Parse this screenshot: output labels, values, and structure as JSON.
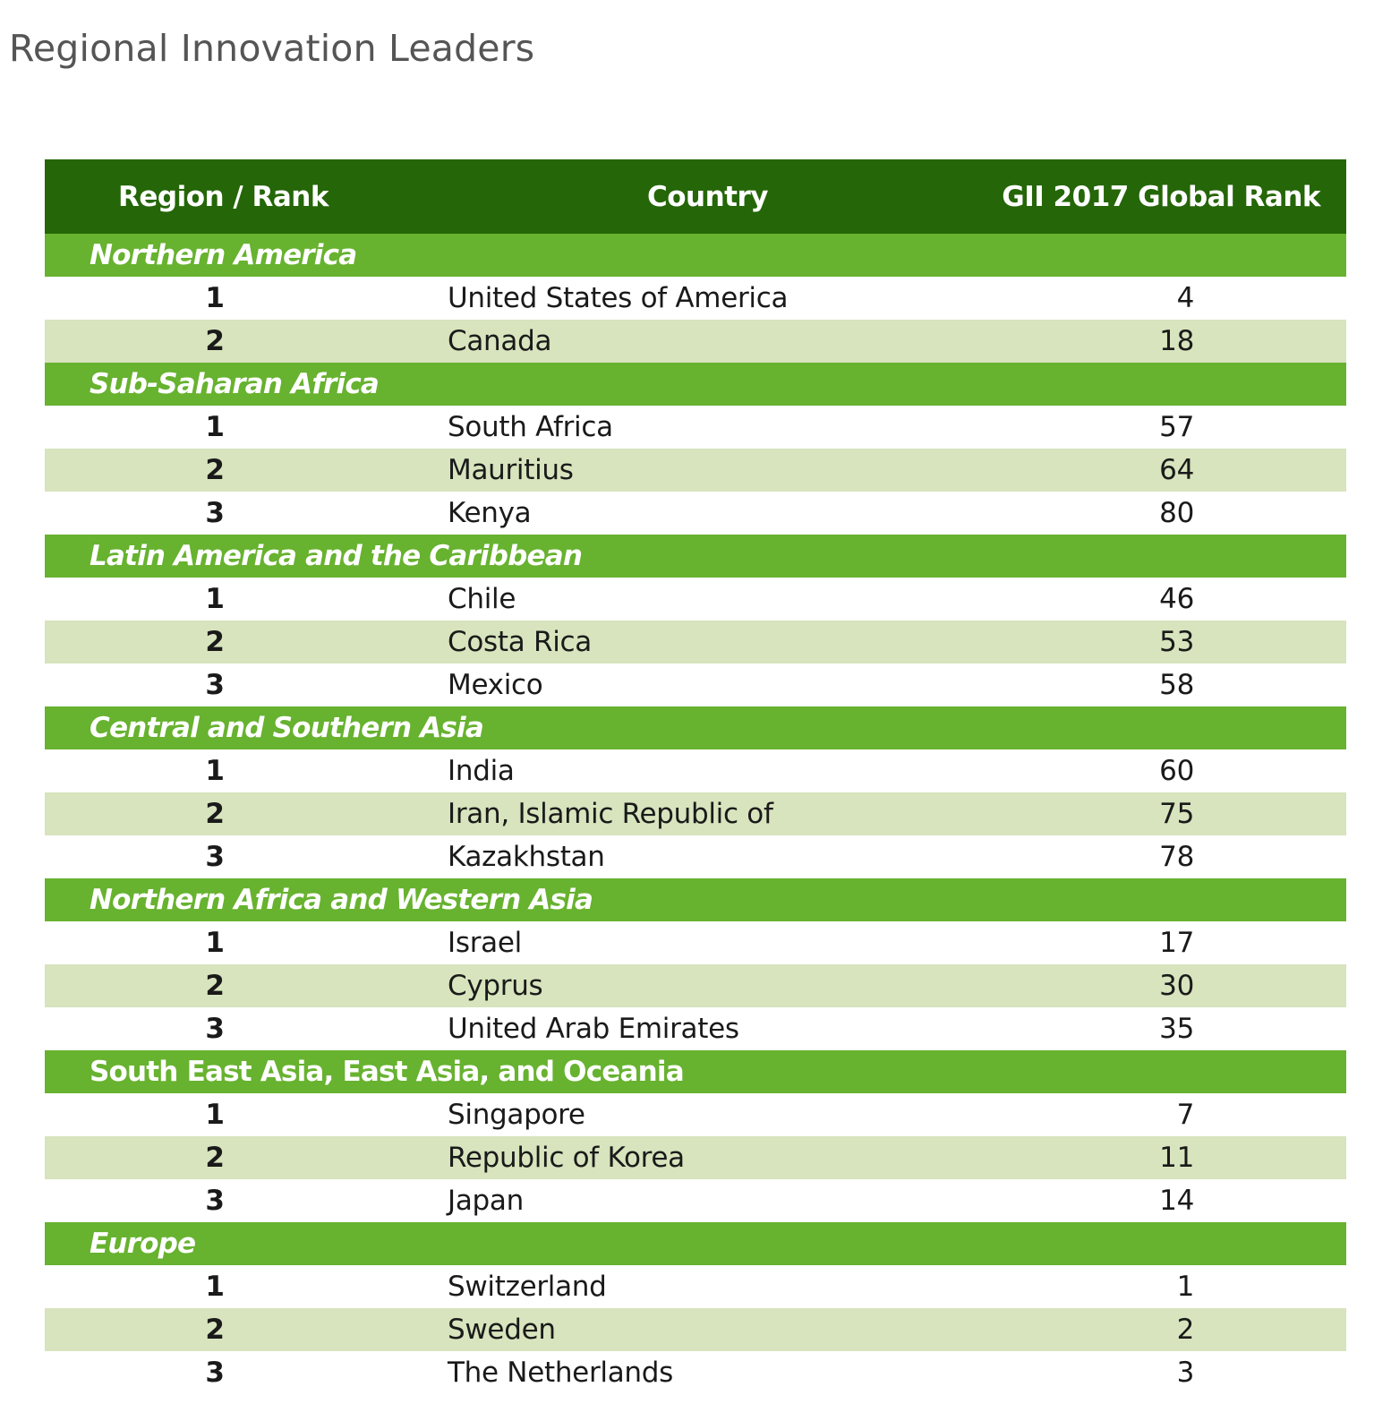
{
  "page": {
    "title": "Regional Innovation Leaders"
  },
  "table": {
    "headers": {
      "rank": "Region / Rank",
      "country": "Country",
      "global_rank": "GII 2017 Global Rank"
    },
    "regions": [
      {
        "name": "Northern America",
        "italic": true,
        "rows": [
          {
            "rank": "1",
            "country": "United States of America",
            "global_rank": "4"
          },
          {
            "rank": "2",
            "country": "Canada",
            "global_rank": "18"
          }
        ]
      },
      {
        "name": "Sub-Saharan Africa",
        "italic": true,
        "rows": [
          {
            "rank": "1",
            "country": "South Africa",
            "global_rank": "57"
          },
          {
            "rank": "2",
            "country": "Mauritius",
            "global_rank": "64"
          },
          {
            "rank": "3",
            "country": "Kenya",
            "global_rank": "80"
          }
        ]
      },
      {
        "name": "Latin America and the Caribbean",
        "italic": true,
        "rows": [
          {
            "rank": "1",
            "country": "Chile",
            "global_rank": "46"
          },
          {
            "rank": "2",
            "country": "Costa Rica",
            "global_rank": "53"
          },
          {
            "rank": "3",
            "country": "Mexico",
            "global_rank": "58"
          }
        ]
      },
      {
        "name": "Central and Southern Asia",
        "italic": true,
        "rows": [
          {
            "rank": "1",
            "country": "India",
            "global_rank": "60"
          },
          {
            "rank": "2",
            "country": "Iran, Islamic Republic of",
            "global_rank": "75"
          },
          {
            "rank": "3",
            "country": "Kazakhstan",
            "global_rank": "78"
          }
        ]
      },
      {
        "name": "Northern Africa and Western Asia",
        "italic": true,
        "rows": [
          {
            "rank": "1",
            "country": "Israel",
            "global_rank": "17"
          },
          {
            "rank": "2",
            "country": "Cyprus",
            "global_rank": "30"
          },
          {
            "rank": "3",
            "country": "United Arab Emirates",
            "global_rank": "35"
          }
        ]
      },
      {
        "name": "South East Asia, East Asia, and Oceania",
        "italic": false,
        "rows": [
          {
            "rank": "1",
            "country": "Singapore",
            "global_rank": "7"
          },
          {
            "rank": "2",
            "country": "Republic of Korea",
            "global_rank": "11"
          },
          {
            "rank": "3",
            "country": "Japan",
            "global_rank": "14"
          }
        ]
      },
      {
        "name": "Europe",
        "italic": true,
        "rows": [
          {
            "rank": "1",
            "country": "Switzerland",
            "global_rank": "1"
          },
          {
            "rank": "2",
            "country": "Sweden",
            "global_rank": "2"
          },
          {
            "rank": "3",
            "country": "The Netherlands",
            "global_rank": "3"
          }
        ]
      }
    ]
  },
  "colors": {
    "header_bg": "#256608",
    "region_bg": "#67b22f",
    "stripe_bg": "#d7e4bd",
    "title_text": "#555555"
  }
}
